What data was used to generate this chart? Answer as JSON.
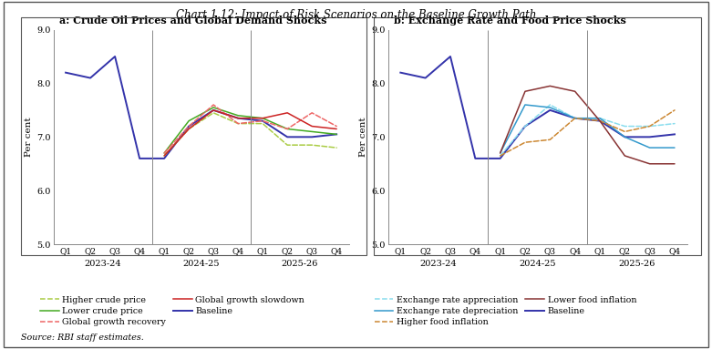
{
  "title": "Chart 1.12: Impact of Risk Scenarios on the Baseline Growth Path",
  "source": "Source: RBI staff estimates.",
  "subplot_a_title": "a: Crude Oil Prices and Global Demand Shocks",
  "subplot_b_title": "b: Exchange Rate and Food Price Shocks",
  "x_labels": [
    "Q1",
    "Q2",
    "Q3",
    "Q4",
    "Q1",
    "Q2",
    "Q3",
    "Q4",
    "Q1",
    "Q2",
    "Q3",
    "Q4"
  ],
  "year_labels": [
    "2023-24",
    "2024-25",
    "2025-26"
  ],
  "ylim": [
    5.0,
    9.0
  ],
  "yticks": [
    5.0,
    6.0,
    7.0,
    8.0,
    9.0
  ],
  "ylabel": "Per cent",
  "panel_a": {
    "baseline": [
      8.2,
      8.1,
      8.5,
      6.6,
      6.6,
      7.2,
      7.5,
      7.35,
      7.3,
      7.0,
      7.0,
      7.05
    ],
    "higher_crude_price": [
      null,
      null,
      null,
      null,
      6.65,
      7.15,
      7.45,
      7.25,
      7.25,
      6.85,
      6.85,
      6.8
    ],
    "lower_crude_price": [
      null,
      null,
      null,
      null,
      6.7,
      7.3,
      7.55,
      7.4,
      7.35,
      7.15,
      7.1,
      7.05
    ],
    "global_growth_recovery": [
      null,
      null,
      null,
      null,
      6.7,
      7.2,
      7.6,
      7.25,
      7.3,
      7.15,
      7.45,
      7.2
    ],
    "global_growth_slowdown": [
      null,
      null,
      null,
      null,
      6.65,
      7.15,
      7.5,
      7.35,
      7.35,
      7.45,
      7.2,
      7.15
    ]
  },
  "panel_b": {
    "baseline": [
      8.2,
      8.1,
      8.5,
      6.6,
      6.6,
      7.2,
      7.5,
      7.35,
      7.3,
      7.0,
      7.0,
      7.05
    ],
    "exchange_rate_appreciation": [
      null,
      null,
      null,
      null,
      6.65,
      7.2,
      7.6,
      7.35,
      7.35,
      7.2,
      7.2,
      7.25
    ],
    "exchange_rate_depreciation": [
      null,
      null,
      null,
      null,
      6.7,
      7.6,
      7.55,
      7.35,
      7.35,
      7.0,
      6.8,
      6.8
    ],
    "higher_food_inflation": [
      null,
      null,
      null,
      null,
      6.65,
      6.9,
      6.95,
      7.35,
      7.3,
      7.1,
      7.2,
      7.5
    ],
    "lower_food_inflation": [
      null,
      null,
      null,
      null,
      6.7,
      7.85,
      7.95,
      7.85,
      7.3,
      6.65,
      6.5,
      6.5
    ]
  },
  "colors": {
    "baseline": "#3333AA",
    "higher_crude_price": "#AACC44",
    "lower_crude_price": "#44AA22",
    "global_growth_recovery": "#EE6666",
    "global_growth_slowdown": "#CC2222",
    "exchange_rate_appreciation": "#88DDEE",
    "exchange_rate_depreciation": "#3399CC",
    "higher_food_inflation": "#CC8833",
    "lower_food_inflation": "#883333"
  },
  "legend_a": [
    {
      "key": "higher_crude_price",
      "label": "Higher crude price",
      "ls": "--"
    },
    {
      "key": "lower_crude_price",
      "label": "Lower crude price",
      "ls": "-"
    },
    {
      "key": "global_growth_recovery",
      "label": "Global growth recovery",
      "ls": "--"
    },
    {
      "key": "global_growth_slowdown",
      "label": "Global growth slowdown",
      "ls": "-"
    },
    {
      "key": "baseline",
      "label": "Baseline",
      "ls": "-"
    }
  ],
  "legend_b": [
    {
      "key": "exchange_rate_appreciation",
      "label": "Exchange rate appreciation",
      "ls": "--"
    },
    {
      "key": "exchange_rate_depreciation",
      "label": "Exchange rate depreciation",
      "ls": "-"
    },
    {
      "key": "higher_food_inflation",
      "label": "Higher food inflation",
      "ls": "--"
    },
    {
      "key": "lower_food_inflation",
      "label": "Lower food inflation",
      "ls": "-"
    },
    {
      "key": "baseline",
      "label": "Baseline",
      "ls": "-"
    }
  ]
}
